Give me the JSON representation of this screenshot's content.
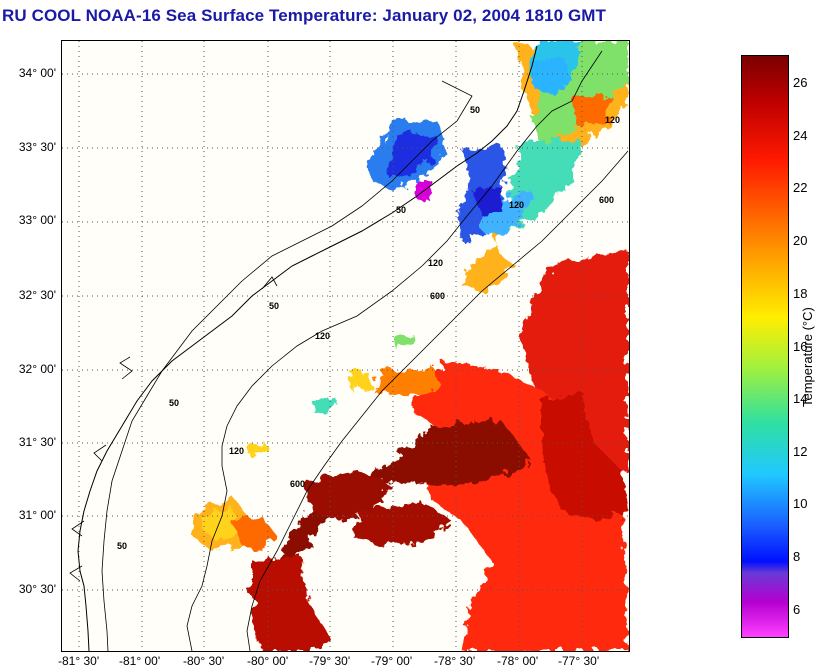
{
  "title": "RU COOL  NOAA-16  Sea Surface Temperature:  January 02, 2004 1810 GMT",
  "latitude_labels": [
    "34° 00'",
    "33° 30'",
    "33° 00'",
    "32° 30'",
    "32° 00'",
    "31° 30'",
    "31° 00'",
    "30° 30'"
  ],
  "longitude_labels": [
    "-81° 30'",
    "-81° 00'",
    "-80° 30'",
    "-80° 00'",
    "-79° 30'",
    "-79° 00'",
    "-78° 30'",
    "-78° 00'",
    "-77° 30'"
  ],
  "depth_contour_labels": [
    "50",
    "50",
    "50",
    "50",
    "50",
    "120",
    "120",
    "120",
    "120",
    "120",
    "600",
    "600",
    "600"
  ],
  "colorbar": {
    "label": "Temperature (°C)",
    "ticks": [
      "26",
      "24",
      "22",
      "20",
      "18",
      "16",
      "14",
      "12",
      "10",
      "8",
      "6"
    ],
    "range": [
      5,
      27
    ]
  },
  "colors": {
    "title": "#1a1aa6",
    "land": "#fffef8",
    "grid": "#555555"
  }
}
